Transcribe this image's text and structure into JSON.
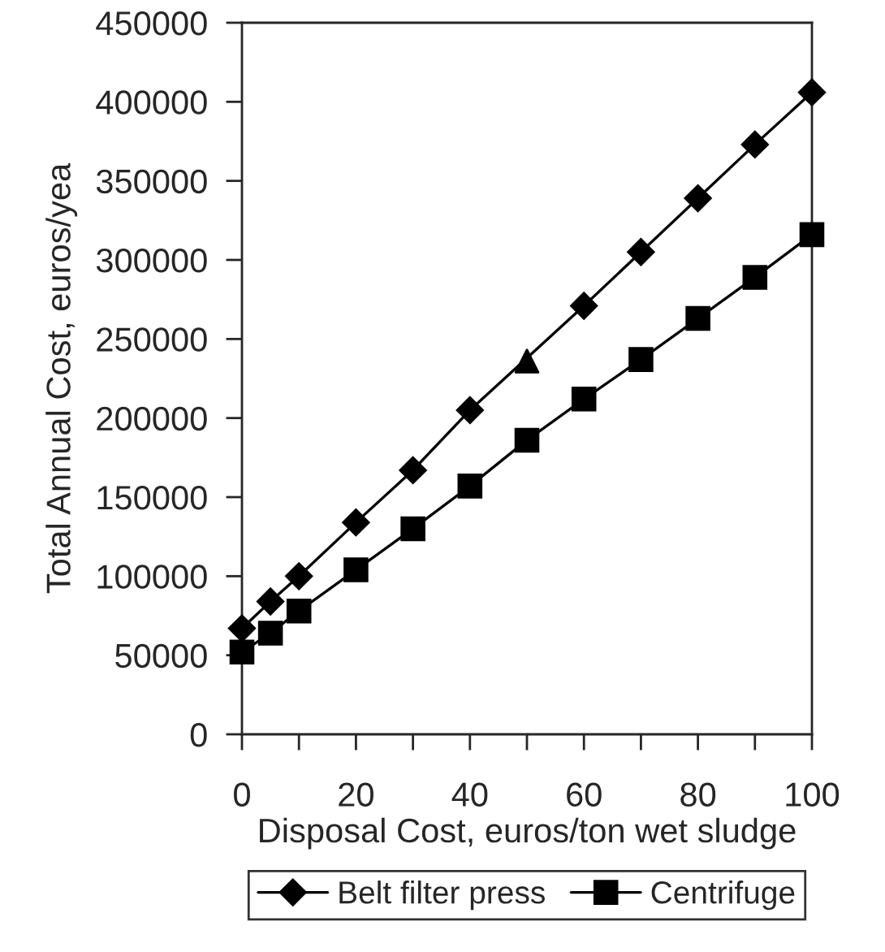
{
  "chart_data": {
    "type": "line",
    "xlabel": "Disposal Cost, euros/ton wet sludge",
    "ylabel": "Total Annual Cost, euros/yea",
    "xlim": [
      0,
      100
    ],
    "xticks": [
      0,
      {
        "value": 10,
        "label": null
      },
      20,
      {
        "value": 30,
        "label": null
      },
      40,
      {
        "value": 50,
        "label": null
      },
      60,
      {
        "value": 70,
        "label": null
      },
      80,
      {
        "value": 90,
        "label": null
      },
      100
    ],
    "ylim": [
      0,
      450000
    ],
    "yticks": [
      0,
      50000,
      100000,
      150000,
      200000,
      250000,
      300000,
      350000,
      400000,
      450000
    ],
    "grid": false,
    "legend": "bottom",
    "line_style": "solid",
    "series": [
      {
        "name": "Belt filter press",
        "color": "#000000",
        "marker": "diamond",
        "x": [
          0,
          5,
          10,
          20,
          30,
          40,
          60,
          70,
          80,
          90,
          100
        ],
        "values": [
          67000,
          84000,
          100000,
          134000,
          167000,
          205000,
          271000,
          305000,
          339000,
          373000,
          406000
        ]
      },
      {
        "name": "Centrifuge",
        "color": "#000000",
        "marker": "square",
        "x": [
          0,
          5,
          10,
          20,
          30,
          40,
          50,
          60,
          70,
          80,
          90,
          100
        ],
        "values": [
          52000,
          64000,
          78000,
          104000,
          130000,
          157000,
          186000,
          212000,
          237000,
          263000,
          289000,
          316000
        ]
      },
      {
        "type": "scatter",
        "color": "#000000",
        "marker": "triangle",
        "x": [
          50
        ],
        "values": [
          236000
        ]
      }
    ]
  }
}
